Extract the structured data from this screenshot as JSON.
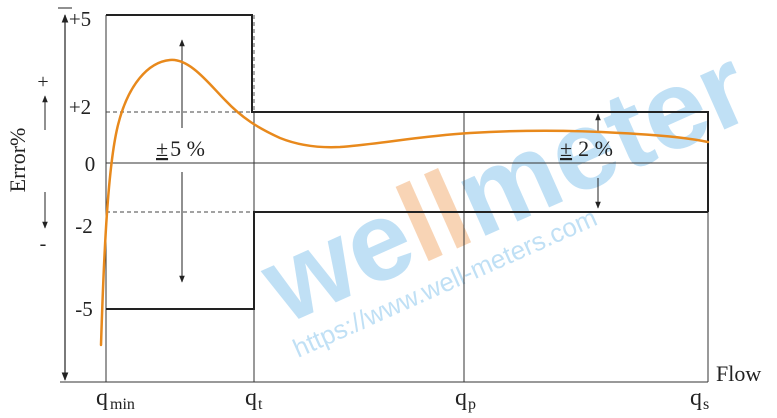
{
  "axes": {
    "y_label": "Error%",
    "x_label": "Flow",
    "y_plus_sign": "+",
    "y_minus_sign": "-",
    "y_ticks": [
      "+5",
      "+2",
      "0",
      "-2",
      "-5"
    ],
    "x_ticks": [
      {
        "base": "q",
        "sub": "min"
      },
      {
        "base": "q",
        "sub": "t"
      },
      {
        "base": "q",
        "sub": "p"
      },
      {
        "base": "q",
        "sub": "s"
      }
    ]
  },
  "annotations": {
    "low_zone_tolerance": "±5%",
    "high_zone_tolerance": "± 2%",
    "low_zone_pm": "±",
    "low_zone_value": "5 %",
    "high_zone_pm": "±",
    "high_zone_value": "2 %"
  },
  "envelope": {
    "low_zone": {
      "from": "qmin",
      "to": "qt",
      "upper": 5,
      "lower": -5
    },
    "high_zone": {
      "from": "qt",
      "to": "qs",
      "upper": 2,
      "lower": -2
    }
  },
  "watermark": {
    "brand": "wellmeter",
    "url": "https://www.well-meters.com"
  },
  "colors": {
    "curve": "#e8891c",
    "lines": "#222222",
    "watermark_blue": "#8ec8ee",
    "watermark_orange": "#f3b27a"
  }
}
